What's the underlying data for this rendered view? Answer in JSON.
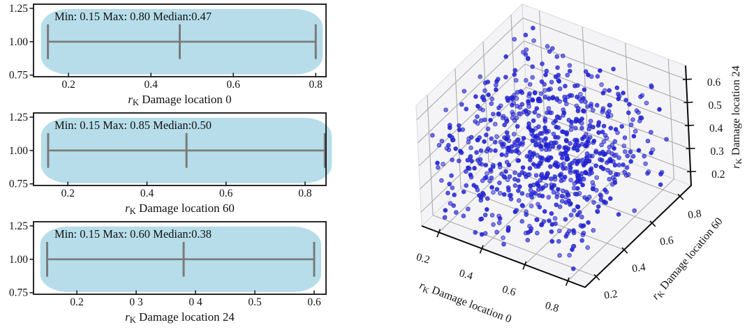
{
  "chart_data": [
    {
      "type": "violin",
      "orientation": "horizontal",
      "annotation": "Min: 0.15 Max: 0.80 Median:0.47",
      "stats": {
        "min": 0.15,
        "max": 0.8,
        "median": 0.47
      },
      "body_center": 1.0,
      "body_top": 1.245,
      "body_bottom": 0.755,
      "whisker_top": 1.13,
      "whisker_bottom": 0.87,
      "ylim": [
        0.738,
        1.281
      ],
      "yticks": [
        1.25,
        1.0,
        0.75
      ],
      "ytick_labels": [
        "1.25",
        "1.00",
        "0.75"
      ],
      "xlim": [
        0.115,
        0.825
      ],
      "xticks": [
        0.2,
        0.4,
        0.6,
        0.8
      ],
      "xtick_labels": [
        "0.2",
        "0.4",
        "0.6",
        "0.8"
      ],
      "xlabel_var": "r",
      "xlabel_var_sub": "K",
      "xlabel_rest": "  Damage location 0",
      "fill_color": "#b6dde9",
      "line_color": "#7a7a7a"
    },
    {
      "type": "violin",
      "orientation": "horizontal",
      "annotation": "Min: 0.15 Max: 0.85 Median:0.50",
      "stats": {
        "min": 0.15,
        "max": 0.85,
        "median": 0.5
      },
      "body_center": 1.0,
      "body_top": 1.245,
      "body_bottom": 0.755,
      "whisker_top": 1.13,
      "whisker_bottom": 0.87,
      "ylim": [
        0.738,
        1.281
      ],
      "yticks": [
        1.25,
        1.0,
        0.75
      ],
      "ytick_labels": [
        "1.25",
        "1.00",
        "0.75"
      ],
      "xlim": [
        0.113,
        0.853
      ],
      "xticks": [
        0.2,
        0.4,
        0.6,
        0.8
      ],
      "xtick_labels": [
        "0.2",
        "0.4",
        "0.6",
        "0.8"
      ],
      "xlabel_var": "r",
      "xlabel_var_sub": "K",
      "xlabel_rest": "  Damage location 60",
      "fill_color": "#b6dde9",
      "line_color": "#7a7a7a"
    },
    {
      "type": "violin",
      "orientation": "horizontal",
      "annotation": "Min: 0.15 Max: 0.60 Median:0.38",
      "stats": {
        "min": 0.15,
        "max": 0.6,
        "median": 0.38
      },
      "body_center": 1.0,
      "body_top": 1.245,
      "body_bottom": 0.755,
      "whisker_top": 1.13,
      "whisker_bottom": 0.87,
      "ylim": [
        0.738,
        1.281
      ],
      "yticks": [
        1.25,
        1.0,
        0.75
      ],
      "ytick_labels": [
        "1.25",
        "1.00",
        "0.75"
      ],
      "xlim": [
        0.127,
        0.62
      ],
      "xticks": [
        0.2,
        0.3,
        0.4,
        0.5,
        0.6
      ],
      "xtick_labels": [
        "0.2",
        "0 3",
        "0 4",
        "0.5",
        "0.6"
      ],
      "xlabel_var": "r",
      "xlabel_var_sub": "K",
      "xlabel_rest": "  Damage location 24",
      "fill_color": "#b6dde9",
      "line_color": "#7a7a7a"
    },
    {
      "type": "scatter3d",
      "n_points": 800,
      "distribution": "uniform",
      "marker": {
        "color": "#2525dd",
        "edge_color": "#1717b8",
        "radius_px": 2.9
      },
      "pane_color": "#f4f4f6",
      "grid_color": "#ababab",
      "axes": {
        "x": {
          "var": "r",
          "var_sub": "K",
          "label_rest": "  Damage location 0",
          "lim": [
            0.12,
            0.88
          ],
          "data_range": [
            0.15,
            0.8
          ],
          "ticks": [
            0.2,
            0.4,
            0.6,
            0.8
          ],
          "tick_labels": [
            "0.2",
            "0.4",
            "0.6",
            "0.8"
          ]
        },
        "y": {
          "var": "r",
          "var_sub": "K",
          "label_rest": "  Damage location 60",
          "lim": [
            0.12,
            0.88
          ],
          "data_range": [
            0.15,
            0.85
          ],
          "ticks": [
            0.2,
            0.4,
            0.6,
            0.8
          ],
          "tick_labels": [
            "0.2",
            "0.4",
            "0.6",
            "0.8"
          ]
        },
        "z": {
          "var": "r",
          "var_sub": "K",
          "label_rest": "  Damage location 24",
          "lim": [
            0.14,
            0.66
          ],
          "data_range": [
            0.15,
            0.6
          ],
          "ticks": [
            0.2,
            0.3,
            0.4,
            0.5,
            0.6
          ],
          "tick_labels": [
            "0.2",
            "0.3",
            "0.4",
            "0.5",
            "0.6"
          ]
        }
      }
    }
  ]
}
